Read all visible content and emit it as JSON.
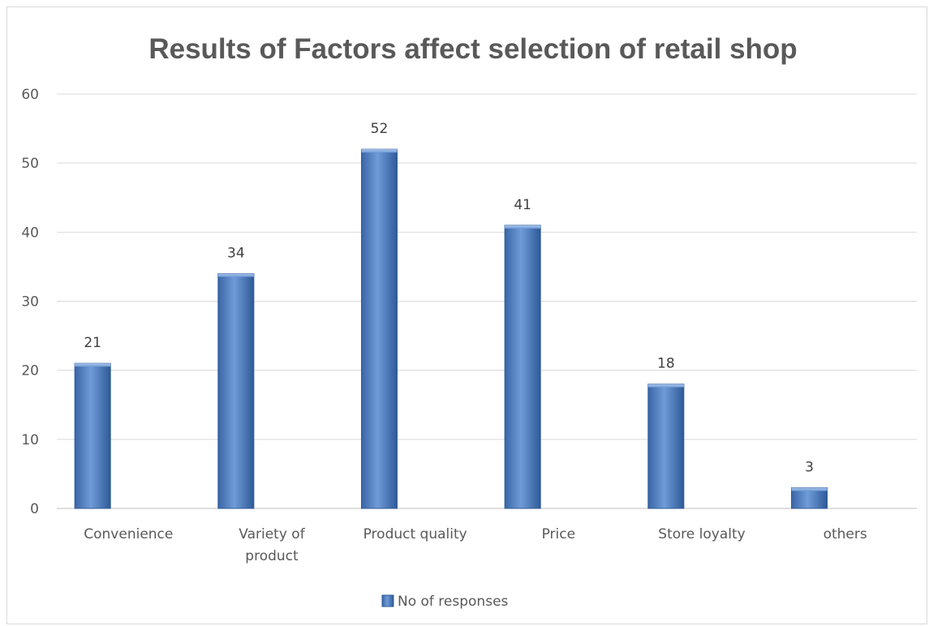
{
  "chart_data": {
    "type": "bar",
    "title": "Results of Factors affect selection of retail shop",
    "xlabel": "",
    "ylabel": "",
    "categories": [
      [
        "Convenience"
      ],
      [
        "Variety of",
        "product"
      ],
      [
        "Product quality"
      ],
      [
        "Price"
      ],
      [
        "Store loyalty"
      ],
      [
        "others"
      ]
    ],
    "series": [
      {
        "name": "No of responses",
        "values": [
          21,
          34,
          52,
          41,
          18,
          3
        ],
        "color": "#4f81bd"
      }
    ],
    "ylim": [
      0,
      60
    ],
    "yticks": [
      0,
      10,
      20,
      30,
      40,
      50,
      60
    ],
    "grid": true,
    "data_labels": true,
    "legend": "bottom"
  }
}
